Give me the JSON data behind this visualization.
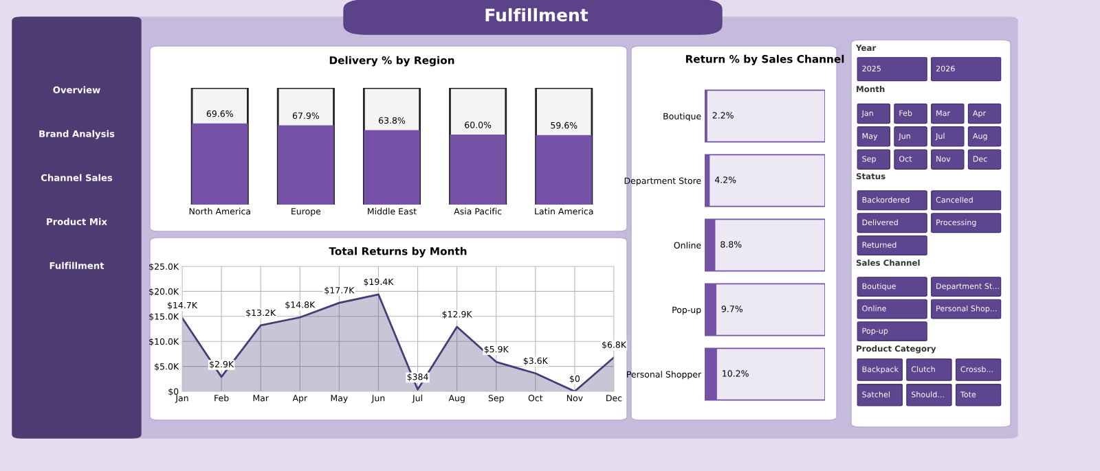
{
  "chart_data": [
    {
      "type": "other",
      "title": "Fulfillment",
      "annotations": [
        "Overview",
        "Brand Analysis",
        "Channel Sales",
        "Product Mix",
        "Fulfillment"
      ]
    },
    {
      "type": "bar",
      "title": "Delivery % by Region",
      "categories": [
        "North America",
        "Europe",
        "Middle East",
        "Asia Pacific",
        "Latin America"
      ],
      "values": [
        69.6,
        67.9,
        63.8,
        60.0,
        59.6
      ],
      "value_labels": [
        "69.6%",
        "67.9%",
        "63.8%",
        "60.0%",
        "59.6%"
      ],
      "color": "#7652a6",
      "ylim": [
        0,
        100
      ],
      "tick_labels": "x"
    },
    {
      "type": "area",
      "title": "Total Returns by Month",
      "categories": [
        "Jan",
        "Feb",
        "Mar",
        "Apr",
        "May",
        "Jun",
        "Jul",
        "Aug",
        "Sep",
        "Oct",
        "Nov",
        "Dec"
      ],
      "series": [
        {
          "color": "#4b3a78",
          "values": [
            14700,
            2900,
            13200,
            14800,
            17700,
            19400,
            384,
            12900,
            5900,
            3600,
            0,
            6800
          ]
        }
      ],
      "value_labels": [
        "$14.7K",
        "$2.9K",
        "$13.2K",
        "$14.8K",
        "$17.7K",
        "$19.4K",
        "$384",
        "$12.9K",
        "$5.9K",
        "$3.6K",
        "$0",
        "$6.8K"
      ],
      "ylim": [
        0,
        25000
      ],
      "yticks": [
        {
          "value": 0,
          "label": "$0"
        },
        {
          "value": 5000,
          "label": "$5.0K"
        },
        {
          "value": 10000,
          "label": "$10.0K"
        },
        {
          "value": 15000,
          "label": "$15.0K"
        },
        {
          "value": 20000,
          "label": "$20.0K"
        },
        {
          "value": 25000,
          "label": "$25.0K"
        }
      ],
      "grid": true
    },
    {
      "type": "bar",
      "orientation": "horizontal",
      "title": "Return % by Sales Channel",
      "categories": [
        "Boutique",
        "Department Store",
        "Online",
        "Pop-up",
        "Personal Shopper"
      ],
      "values": [
        2.2,
        4.2,
        8.8,
        9.7,
        10.2
      ],
      "value_labels": [
        "2.2%",
        "4.2%",
        "8.8%",
        "9.7%",
        "10.2%"
      ],
      "color": "#7652a6",
      "xlim": [
        0,
        100
      ],
      "tick_labels": "y"
    },
    {
      "type": "other",
      "title": "Year",
      "annotations": [
        "2025",
        "2026"
      ]
    },
    {
      "type": "other",
      "title": "Month",
      "annotations": [
        "Jan",
        "Feb",
        "Mar",
        "Apr",
        "May",
        "Jun",
        "Jul",
        "Aug",
        "Sep",
        "Oct",
        "Nov",
        "Dec"
      ]
    },
    {
      "type": "other",
      "title": "Status",
      "annotations": [
        "Backordered",
        "Cancelled",
        "Delivered",
        "Processing",
        "Returned"
      ]
    },
    {
      "type": "other",
      "title": "Sales Channel",
      "annotations": [
        "Boutique",
        "Department St...",
        "Online",
        "Personal Shop...",
        "Pop-up"
      ]
    },
    {
      "type": "other",
      "title": "Product Category",
      "annotations": [
        "Backpack",
        "Clutch",
        "Crossb...",
        "Satchel",
        "Should...",
        "Tote"
      ]
    }
  ]
}
